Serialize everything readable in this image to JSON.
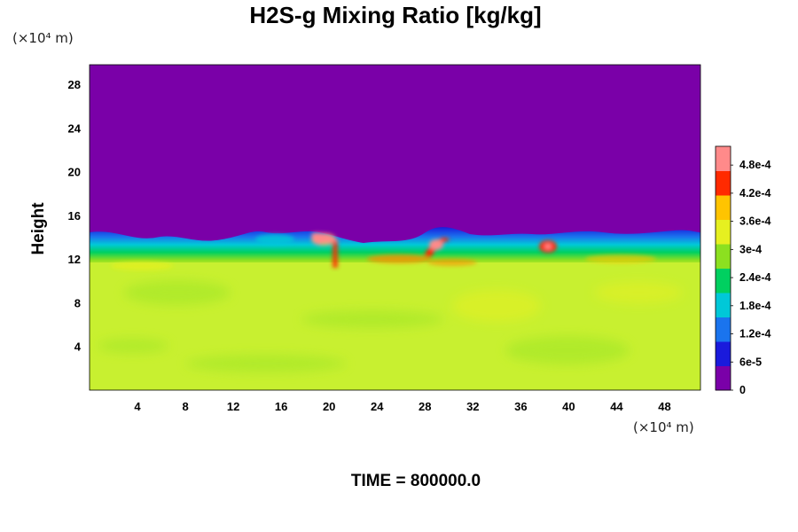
{
  "chart_data": {
    "type": "heatmap",
    "title": "H2S-g Mixing Ratio [kg/kg]",
    "ylabel": "Height",
    "xlabel": "",
    "x_unit": "(×10⁴ m)",
    "y_unit": "(×10⁴ m)",
    "x_ticks": [
      "4",
      "8",
      "12",
      "16",
      "20",
      "24",
      "28",
      "32",
      "36",
      "40",
      "44",
      "48"
    ],
    "y_ticks": [
      "4",
      "8",
      "12",
      "16",
      "20",
      "24",
      "28"
    ],
    "xlim": [
      0,
      51
    ],
    "ylim": [
      0,
      29.8
    ],
    "colorbar": {
      "labels": [
        "0",
        "6e-5",
        "1.2e-4",
        "1.8e-4",
        "2.4e-4",
        "3e-4",
        "3.6e-4",
        "4.2e-4",
        "4.8e-4"
      ],
      "range": [
        0,
        0.00052
      ],
      "colors": [
        "#7a00a8",
        "#1a1adc",
        "#1a74ee",
        "#00c8d8",
        "#00d060",
        "#8ce020",
        "#e6f020",
        "#ffc400",
        "#ff2a00",
        "#ff8a8a"
      ]
    },
    "fields": {
      "background_top": "#7a00a8",
      "lower_layer": "#c8f030"
    },
    "time_label": "TIME = 800000.0"
  }
}
